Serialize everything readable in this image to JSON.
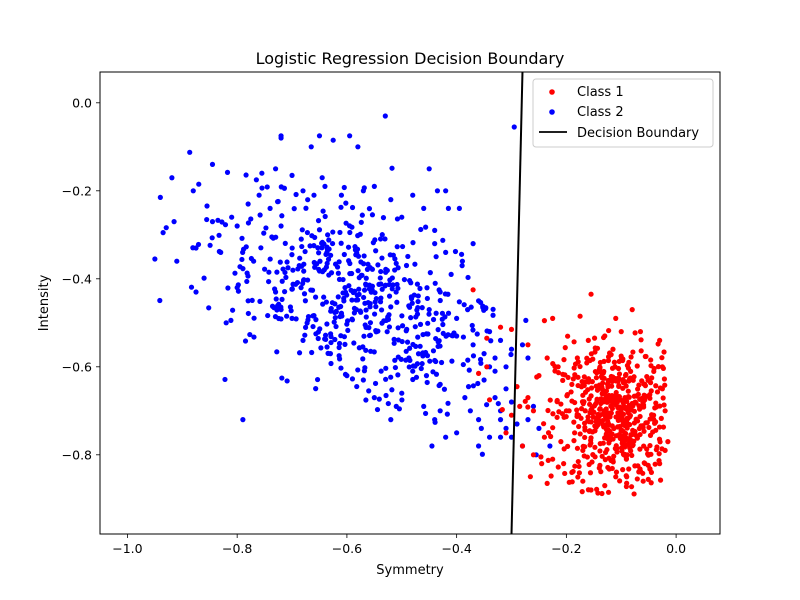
{
  "chart_data": {
    "type": "scatter",
    "title": "Logistic Regression Decision Boundary",
    "xlabel": "Symmetry",
    "ylabel": "Intensity",
    "xlim": [
      -1.05,
      0.08
    ],
    "ylim": [
      -0.98,
      0.07
    ],
    "xticks": [
      -1.0,
      -0.8,
      -0.6,
      -0.4,
      -0.2,
      0.0
    ],
    "xtick_labels": [
      "−1.0",
      "−0.8",
      "−0.6",
      "−0.4",
      "−0.2",
      "0.0"
    ],
    "yticks": [
      0.0,
      -0.2,
      -0.4,
      -0.6,
      -0.8
    ],
    "ytick_labels": [
      "0.0",
      "−0.2",
      "−0.4",
      "−0.6",
      "−0.8"
    ],
    "grid": false,
    "legend": "top-right",
    "series": [
      {
        "name": "Class 1",
        "color": "#ff0000",
        "cluster": {
          "center": [
            -0.11,
            -0.71
          ],
          "spread": [
            0.055,
            0.08
          ],
          "count": 600
        },
        "points": [
          [
            -0.155,
            -0.435
          ],
          [
            -0.08,
            -0.47
          ],
          [
            -0.37,
            -0.425
          ],
          [
            -0.345,
            -0.535
          ],
          [
            -0.24,
            -0.495
          ],
          [
            -0.225,
            -0.49
          ],
          [
            -0.175,
            -0.485
          ],
          [
            -0.11,
            -0.49
          ],
          [
            -0.32,
            -0.51
          ],
          [
            -0.3,
            -0.515
          ],
          [
            -0.27,
            -0.55
          ],
          [
            -0.345,
            -0.6
          ],
          [
            -0.36,
            -0.615
          ],
          [
            -0.29,
            -0.645
          ],
          [
            -0.34,
            -0.675
          ],
          [
            -0.3,
            -0.71
          ],
          [
            -0.285,
            -0.69
          ],
          [
            -0.27,
            -0.67
          ],
          [
            -0.25,
            -0.62
          ],
          [
            -0.235,
            -0.58
          ],
          [
            -0.215,
            -0.6
          ],
          [
            -0.31,
            -0.75
          ],
          [
            -0.28,
            -0.78
          ],
          [
            -0.26,
            -0.8
          ],
          [
            -0.245,
            -0.82
          ],
          [
            -0.225,
            -0.81
          ],
          [
            -0.205,
            -0.82
          ],
          [
            -0.19,
            -0.84
          ],
          [
            -0.235,
            -0.865
          ],
          [
            -0.17,
            -0.86
          ],
          [
            -0.155,
            -0.88
          ],
          [
            -0.13,
            -0.87
          ],
          [
            -0.21,
            -0.77
          ],
          [
            -0.24,
            -0.76
          ],
          [
            -0.2,
            -0.7
          ],
          [
            -0.26,
            -0.7
          ],
          [
            -0.03,
            -0.54
          ],
          [
            -0.025,
            -0.6
          ],
          [
            -0.02,
            -0.7
          ],
          [
            -0.015,
            -0.77
          ],
          [
            -0.02,
            -0.79
          ],
          [
            -0.03,
            -0.82
          ],
          [
            -0.045,
            -0.84
          ],
          [
            -0.06,
            -0.86
          ],
          [
            -0.09,
            -0.85
          ],
          [
            -0.11,
            -0.85
          ],
          [
            -0.14,
            -0.83
          ],
          [
            -0.065,
            -0.52
          ],
          [
            -0.1,
            -0.52
          ],
          [
            -0.13,
            -0.53
          ],
          [
            -0.16,
            -0.54
          ],
          [
            -0.18,
            -0.58
          ],
          [
            -0.19,
            -0.64
          ],
          [
            -0.195,
            -0.7
          ],
          [
            -0.185,
            -0.75
          ],
          [
            -0.17,
            -0.79
          ],
          [
            -0.025,
            -0.65
          ]
        ]
      },
      {
        "name": "Class 2",
        "color": "#0000ff",
        "cluster": {
          "center": [
            -0.58,
            -0.45
          ],
          "spread": [
            0.12,
            0.1
          ],
          "count": 560
        },
        "points": [
          [
            -0.95,
            -0.355
          ],
          [
            -0.94,
            -0.215
          ],
          [
            -0.915,
            -0.27
          ],
          [
            -0.91,
            -0.36
          ],
          [
            -0.935,
            -0.295
          ],
          [
            -0.88,
            -0.2
          ],
          [
            -0.87,
            -0.185
          ],
          [
            -0.845,
            -0.14
          ],
          [
            -0.875,
            -0.33
          ],
          [
            -0.875,
            -0.43
          ],
          [
            -0.83,
            -0.34
          ],
          [
            -0.82,
            -0.5
          ],
          [
            -0.845,
            -0.27
          ],
          [
            -0.8,
            -0.42
          ],
          [
            -0.81,
            -0.26
          ],
          [
            -0.72,
            -0.075
          ],
          [
            -0.65,
            -0.075
          ],
          [
            -0.625,
            -0.085
          ],
          [
            -0.595,
            -0.075
          ],
          [
            -0.58,
            -0.1
          ],
          [
            -0.53,
            -0.03
          ],
          [
            -0.295,
            -0.055
          ],
          [
            -0.665,
            -0.1
          ],
          [
            -0.72,
            -0.08
          ],
          [
            -0.755,
            -0.16
          ],
          [
            -0.73,
            -0.15
          ],
          [
            -0.765,
            -0.175
          ],
          [
            -0.7,
            -0.165
          ],
          [
            -0.45,
            -0.15
          ],
          [
            -0.435,
            -0.2
          ],
          [
            -0.42,
            -0.2
          ],
          [
            -0.415,
            -0.24
          ],
          [
            -0.44,
            -0.29
          ],
          [
            -0.395,
            -0.24
          ],
          [
            -0.37,
            -0.32
          ],
          [
            -0.39,
            -0.37
          ],
          [
            -0.36,
            -0.45
          ],
          [
            -0.38,
            -0.47
          ],
          [
            -0.4,
            -0.49
          ],
          [
            -0.4,
            -0.53
          ],
          [
            -0.37,
            -0.55
          ],
          [
            -0.35,
            -0.57
          ],
          [
            -0.34,
            -0.6
          ],
          [
            -0.33,
            -0.61
          ],
          [
            -0.35,
            -0.63
          ],
          [
            -0.33,
            -0.67
          ],
          [
            -0.36,
            -0.72
          ],
          [
            -0.355,
            -0.74
          ],
          [
            -0.32,
            -0.7
          ],
          [
            -0.32,
            -0.72
          ],
          [
            -0.31,
            -0.74
          ],
          [
            -0.3,
            -0.76
          ],
          [
            -0.32,
            -0.76
          ],
          [
            -0.34,
            -0.76
          ],
          [
            -0.36,
            -0.78
          ],
          [
            -0.28,
            -0.78
          ],
          [
            -0.29,
            -0.73
          ],
          [
            -0.3,
            -0.68
          ],
          [
            -0.31,
            -0.65
          ],
          [
            -0.33,
            -0.58
          ],
          [
            -0.32,
            -0.54
          ],
          [
            -0.34,
            -0.52
          ],
          [
            -0.27,
            -0.72
          ],
          [
            -0.25,
            -0.74
          ],
          [
            -0.255,
            -0.8
          ],
          [
            -0.23,
            -0.78
          ],
          [
            -0.26,
            -0.69
          ],
          [
            -0.27,
            -0.58
          ],
          [
            -0.28,
            -0.55
          ],
          [
            -0.3,
            -0.56
          ],
          [
            -0.31,
            -0.6
          ],
          [
            -0.375,
            -0.7
          ],
          [
            -0.4,
            -0.75
          ],
          [
            -0.385,
            -0.67
          ],
          [
            -0.44,
            -0.72
          ],
          [
            -0.445,
            -0.78
          ],
          [
            -0.42,
            -0.76
          ],
          [
            -0.43,
            -0.7
          ],
          [
            -0.43,
            -0.64
          ],
          [
            -0.455,
            -0.62
          ],
          [
            -0.46,
            -0.69
          ],
          [
            -0.48,
            -0.61
          ],
          [
            -0.5,
            -0.66
          ],
          [
            -0.51,
            -0.69
          ],
          [
            -0.52,
            -0.72
          ],
          [
            -0.55,
            -0.67
          ],
          [
            -0.57,
            -0.63
          ],
          [
            -0.6,
            -0.62
          ],
          [
            -0.63,
            -0.57
          ],
          [
            -0.68,
            -0.54
          ],
          [
            -0.7,
            -0.49
          ],
          [
            -0.72,
            -0.47
          ],
          [
            -0.73,
            -0.43
          ],
          [
            -0.78,
            -0.45
          ],
          [
            -0.77,
            -0.36
          ],
          [
            -0.79,
            -0.34
          ],
          [
            -0.8,
            -0.28
          ],
          [
            -0.78,
            -0.23
          ],
          [
            -0.76,
            -0.21
          ],
          [
            -0.74,
            -0.24
          ],
          [
            -0.72,
            -0.28
          ],
          [
            -0.68,
            -0.2
          ],
          [
            -0.66,
            -0.21
          ],
          [
            -0.64,
            -0.19
          ],
          [
            -0.61,
            -0.21
          ],
          [
            -0.57,
            -0.2
          ],
          [
            -0.55,
            -0.19
          ],
          [
            -0.52,
            -0.22
          ],
          [
            -0.5,
            -0.26
          ],
          [
            -0.48,
            -0.21
          ],
          [
            -0.46,
            -0.24
          ],
          [
            -0.44,
            -0.32
          ],
          [
            -0.42,
            -0.34
          ],
          [
            -0.41,
            -0.39
          ],
          [
            -0.43,
            -0.43
          ],
          [
            -0.45,
            -0.47
          ]
        ]
      }
    ],
    "boundary": {
      "name": "Decision Boundary",
      "color": "#000000",
      "points": [
        [
          -0.3,
          -0.98
        ],
        [
          -0.28,
          0.07
        ]
      ]
    }
  }
}
